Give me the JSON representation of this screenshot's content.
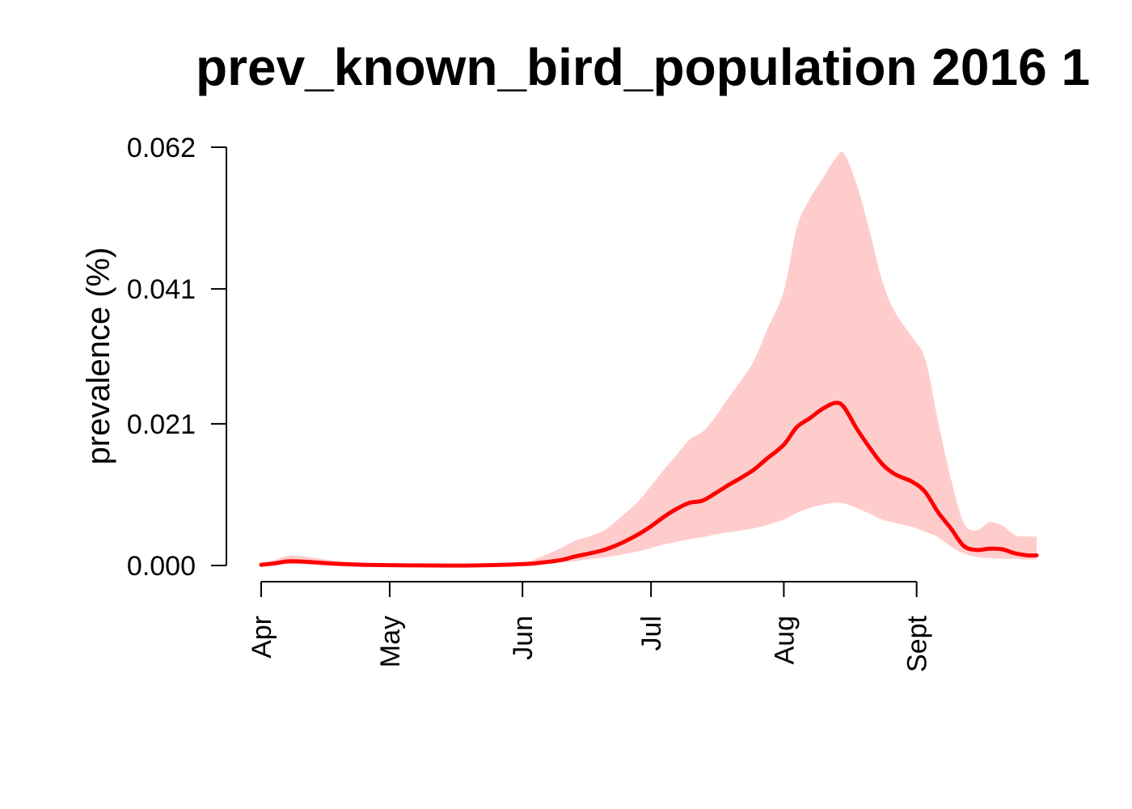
{
  "chart_data": {
    "type": "line",
    "title": "prev_known_bird_population 2016 1",
    "xlabel": "",
    "ylabel": "prevalence (%)",
    "x_ticks": [
      "Apr",
      "May",
      "Jun",
      "Jul",
      "Aug",
      "Sept"
    ],
    "y_ticks": [
      "0.000",
      "0.021",
      "0.041",
      "0.062"
    ],
    "ylim": [
      0,
      0.062
    ],
    "xlim": [
      "2016-04-01",
      "2016-09-29"
    ],
    "grid": false,
    "legend": "none",
    "colors": {
      "line": "#ff0000",
      "band": "#ffcccc"
    },
    "series": [
      {
        "x": [
          "2016-04-01",
          "2016-04-04",
          "2016-04-07",
          "2016-04-10",
          "2016-04-15",
          "2016-04-20",
          "2016-04-25",
          "2016-05-01",
          "2016-05-10",
          "2016-05-20",
          "2016-06-01",
          "2016-06-05",
          "2016-06-10",
          "2016-06-13",
          "2016-06-16",
          "2016-06-20",
          "2016-06-24",
          "2016-06-28",
          "2016-07-01",
          "2016-07-04",
          "2016-07-07",
          "2016-07-10",
          "2016-07-13",
          "2016-07-16",
          "2016-07-19",
          "2016-07-22",
          "2016-07-25",
          "2016-07-28",
          "2016-08-01",
          "2016-08-04",
          "2016-08-07",
          "2016-08-10",
          "2016-08-13",
          "2016-08-15",
          "2016-08-18",
          "2016-08-21",
          "2016-08-24",
          "2016-08-27",
          "2016-08-31",
          "2016-09-03",
          "2016-09-06",
          "2016-09-09",
          "2016-09-12",
          "2016-09-15",
          "2016-09-18",
          "2016-09-21",
          "2016-09-24",
          "2016-09-27",
          "2016-09-29"
        ],
        "values": [
          0.0001,
          0.0003,
          0.0006,
          0.0006,
          0.0004,
          0.0002,
          0.0001,
          5e-05,
          0.0,
          0.0,
          0.0002,
          0.0004,
          0.0008,
          0.0013,
          0.0017,
          0.0023,
          0.0033,
          0.0046,
          0.0058,
          0.0072,
          0.0084,
          0.0093,
          0.0096,
          0.0107,
          0.0119,
          0.013,
          0.0142,
          0.0158,
          0.0179,
          0.0205,
          0.0218,
          0.0232,
          0.0241,
          0.0235,
          0.0203,
          0.0175,
          0.015,
          0.0135,
          0.0124,
          0.0109,
          0.0079,
          0.0055,
          0.0029,
          0.0023,
          0.0025,
          0.0024,
          0.0018,
          0.0015,
          0.0015
        ],
        "lower": [
          0.0,
          0.0001,
          0.0002,
          0.0002,
          0.0001,
          0.0001,
          0.0,
          0.0,
          0.0,
          0.0,
          0.0001,
          0.0002,
          0.0005,
          0.0006,
          0.0009,
          0.0012,
          0.0016,
          0.0021,
          0.0026,
          0.0031,
          0.0035,
          0.0039,
          0.0042,
          0.0046,
          0.0049,
          0.0052,
          0.0055,
          0.006,
          0.0068,
          0.0078,
          0.0085,
          0.009,
          0.0093,
          0.0092,
          0.0085,
          0.0077,
          0.0068,
          0.0063,
          0.0057,
          0.005,
          0.0042,
          0.0028,
          0.0018,
          0.0013,
          0.0011,
          0.001,
          0.001,
          0.0009,
          0.0009
        ],
        "upper": [
          0.0003,
          0.0008,
          0.0014,
          0.0014,
          0.001,
          0.0006,
          0.0004,
          0.0002,
          0.0001,
          0.0001,
          0.0005,
          0.0012,
          0.0026,
          0.0036,
          0.0042,
          0.0052,
          0.0072,
          0.0095,
          0.0118,
          0.0142,
          0.0164,
          0.0187,
          0.0198,
          0.022,
          0.0248,
          0.0274,
          0.0303,
          0.0348,
          0.0407,
          0.05,
          0.0543,
          0.0573,
          0.0603,
          0.0611,
          0.0565,
          0.0496,
          0.0421,
          0.0375,
          0.0338,
          0.0306,
          0.0214,
          0.0129,
          0.0063,
          0.0052,
          0.0064,
          0.0059,
          0.0045,
          0.0043,
          0.0043
        ]
      }
    ]
  }
}
